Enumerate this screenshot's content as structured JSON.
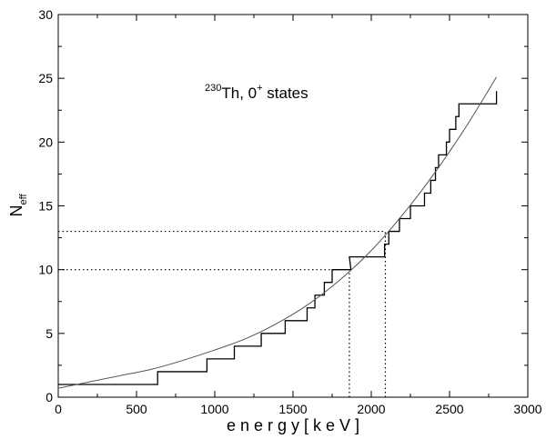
{
  "chart_data": {
    "type": "line",
    "xlabel": "e n e r g y   [ k e V ]",
    "ylabel": {
      "main": "N",
      "sub": "eff"
    },
    "annotation": {
      "sup": "230",
      "main": "Th,  0",
      "sup2": "+",
      "rest": " states"
    },
    "xlim": [
      0,
      3000
    ],
    "ylim": [
      0,
      30
    ],
    "xticks": [
      0,
      500,
      1000,
      1500,
      2000,
      2500,
      3000
    ],
    "yticks": [
      0,
      5,
      10,
      15,
      20,
      25,
      30
    ],
    "xtick_labels": [
      "0",
      "500",
      "1000",
      "1500",
      "2000",
      "2500",
      "3000"
    ],
    "ytick_labels": [
      "0",
      "5",
      "10",
      "15",
      "20",
      "25",
      "30"
    ],
    "series": [
      {
        "kind": "step",
        "color": "#000000",
        "x": [
          0,
          635,
          635,
          950,
          950,
          1125,
          1125,
          1297,
          1297,
          1450,
          1450,
          1590,
          1590,
          1640,
          1640,
          1700,
          1700,
          1750,
          1750,
          1770,
          1770,
          1830,
          1830,
          1870,
          1870,
          1860,
          2085,
          2085,
          2112,
          2112,
          2180,
          2180,
          2250,
          2250,
          2340,
          2340,
          2380,
          2380,
          2410,
          2410,
          2430,
          2430,
          2480,
          2480,
          2500,
          2500,
          2540,
          2540,
          2560,
          2560,
          2610,
          2610,
          2800,
          2800
        ],
        "y": [
          1,
          1,
          2,
          2,
          3,
          3,
          4,
          4,
          5,
          5,
          6,
          6,
          7,
          7,
          8,
          8,
          9,
          9,
          10,
          10,
          10,
          10,
          10,
          10,
          10,
          11,
          11,
          12,
          12,
          13,
          13,
          14,
          14,
          15,
          15,
          16,
          16,
          17,
          17,
          18,
          18,
          19,
          19,
          20,
          20,
          21,
          21,
          22,
          22,
          23,
          23,
          23,
          23,
          24
        ]
      },
      {
        "kind": "smooth",
        "color": "#555555",
        "x": [
          0,
          200,
          400,
          600,
          800,
          1000,
          1200,
          1400,
          1600,
          1800,
          2000,
          2200,
          2400,
          2600,
          2800
        ],
        "y": [
          0.7,
          1.2,
          1.7,
          2.2,
          2.9,
          3.7,
          4.6,
          5.8,
          7.3,
          9.2,
          11.5,
          14.3,
          17.5,
          21.1,
          25.1
        ]
      }
    ],
    "reference_lines": [
      {
        "y": 13,
        "x_end": 2090
      },
      {
        "y": 10,
        "x_end": 1860
      },
      {
        "x": 1860,
        "y_end": 10
      },
      {
        "x": 2090,
        "y_end": 13
      }
    ]
  }
}
